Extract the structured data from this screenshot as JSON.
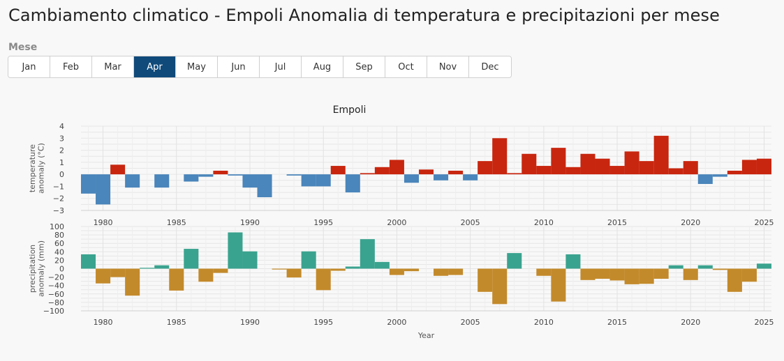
{
  "page": {
    "title": "Cambiamento climatico - Empoli Anomalia di temperatura e precipitazioni per mese"
  },
  "filter": {
    "label": "Mese",
    "months": [
      "Jan",
      "Feb",
      "Mar",
      "Apr",
      "May",
      "Jun",
      "Jul",
      "Aug",
      "Sep",
      "Oct",
      "Nov",
      "Dec"
    ],
    "selected": "Apr",
    "active_color": "#0f4a7a"
  },
  "chart_data": [
    {
      "type": "bar",
      "title": "Empoli",
      "xlabel": "",
      "ylabel": "temperature anomaly (°C)",
      "ylim": [
        -3,
        4
      ],
      "xlim": [
        1978.5,
        2025.5
      ],
      "xticks": [
        1980,
        1985,
        1990,
        1995,
        2000,
        2005,
        2010,
        2015,
        2020,
        2025
      ],
      "yticks": [
        -3,
        -2,
        -1,
        0,
        1,
        2,
        3,
        4
      ],
      "colors": {
        "positive": "#c8260f",
        "negative": "#4a85bb"
      },
      "x": [
        1979,
        1980,
        1981,
        1982,
        1983,
        1984,
        1985,
        1986,
        1987,
        1988,
        1989,
        1990,
        1991,
        1992,
        1993,
        1994,
        1995,
        1996,
        1997,
        1998,
        1999,
        2000,
        2001,
        2002,
        2003,
        2004,
        2005,
        2006,
        2007,
        2008,
        2009,
        2010,
        2011,
        2012,
        2013,
        2014,
        2015,
        2016,
        2017,
        2018,
        2019,
        2020,
        2021,
        2022,
        2023,
        2024,
        2025
      ],
      "values": [
        -1.6,
        -2.5,
        0.8,
        -1.1,
        0.0,
        -1.1,
        0.0,
        -0.6,
        -0.2,
        0.3,
        -0.1,
        -1.1,
        -1.9,
        0.0,
        -0.1,
        -1.0,
        -1.0,
        0.7,
        -1.5,
        0.1,
        0.6,
        1.2,
        -0.7,
        0.4,
        -0.5,
        0.3,
        -0.5,
        1.1,
        3.0,
        0.1,
        1.7,
        0.7,
        2.2,
        0.6,
        1.7,
        1.3,
        0.7,
        1.9,
        1.1,
        3.2,
        0.5,
        1.1,
        -0.8,
        -0.2,
        0.3,
        1.2,
        1.3
      ]
    },
    {
      "type": "bar",
      "title": "",
      "xlabel": "Year",
      "ylabel": "precipitation anomaly (mm)",
      "ylim": [
        -100,
        100
      ],
      "xlim": [
        1978.5,
        2025.5
      ],
      "xticks": [
        1980,
        1985,
        1990,
        1995,
        2000,
        2005,
        2010,
        2015,
        2020,
        2025
      ],
      "yticks": [
        -100,
        -80,
        -60,
        -40,
        -20,
        0,
        20,
        40,
        60,
        80,
        100
      ],
      "colors": {
        "positive": "#3aa38f",
        "negative": "#c38a2b"
      },
      "x": [
        1979,
        1980,
        1981,
        1982,
        1983,
        1984,
        1985,
        1986,
        1987,
        1988,
        1989,
        1990,
        1991,
        1992,
        1993,
        1994,
        1995,
        1996,
        1997,
        1998,
        1999,
        2000,
        2001,
        2002,
        2003,
        2004,
        2005,
        2006,
        2007,
        2008,
        2009,
        2010,
        2011,
        2012,
        2013,
        2014,
        2015,
        2016,
        2017,
        2018,
        2019,
        2020,
        2021,
        2022,
        2023,
        2024,
        2025
      ],
      "values": [
        34,
        -35,
        -20,
        -64,
        2,
        8,
        -52,
        47,
        -31,
        -10,
        86,
        41,
        0,
        -2,
        -21,
        41,
        -51,
        -5,
        5,
        70,
        16,
        -15,
        -6,
        0,
        -17,
        -15,
        0,
        -55,
        -84,
        37,
        0,
        -17,
        -78,
        34,
        -27,
        -24,
        -28,
        -37,
        -36,
        -24,
        8,
        -27,
        8,
        -3,
        -55,
        -31,
        12
      ]
    }
  ]
}
